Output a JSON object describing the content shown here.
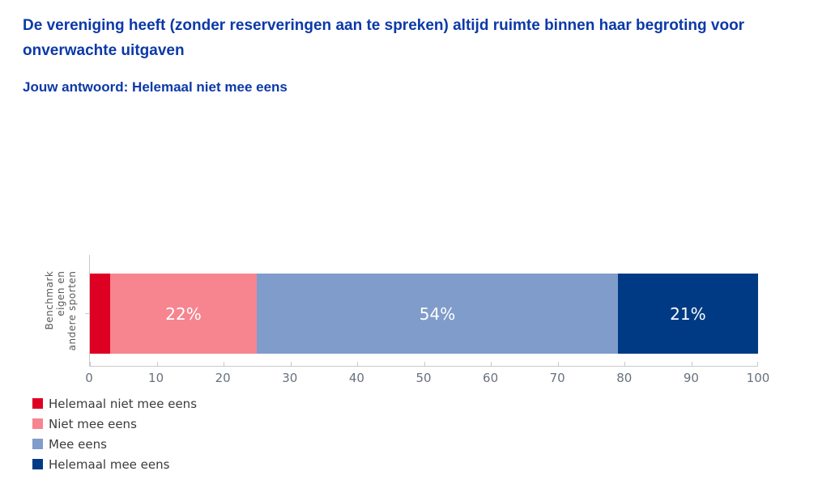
{
  "page": {
    "title": "De vereniging heeft (zonder reserveringen aan te spreken) altijd ruimte binnen haar begroting voor onverwachte uitgaven",
    "subtitle": "Jouw antwoord: Helemaal niet mee eens"
  },
  "chart_data": {
    "type": "bar",
    "orientation": "horizontal",
    "stacked": true,
    "title": "De vereniging heeft (zonder reserveringen aan te spreken) altijd ruimte binnen haar begroting voor onverwachte uitgaven",
    "subtitle": "Jouw antwoord: Helemaal niet mee eens",
    "category": "Benchmark eigen en andere sporten",
    "category_lines": [
      "Benchmark",
      "eigen en",
      "andere sporten"
    ],
    "series": [
      {
        "name": "Helemaal niet mee eens",
        "value": 3,
        "label": "",
        "color": "#de0023"
      },
      {
        "name": "Niet mee eens",
        "value": 22,
        "label": "22%",
        "color": "#f6858f"
      },
      {
        "name": "Mee eens",
        "value": 54,
        "label": "54%",
        "color": "#7f9cca"
      },
      {
        "name": "Helemaal mee eens",
        "value": 21,
        "label": "21%",
        "color": "#003a84"
      }
    ],
    "xlim": [
      0,
      100
    ],
    "x_ticks": [
      0,
      10,
      20,
      30,
      40,
      50,
      60,
      70,
      80,
      90,
      100
    ],
    "legend_position": "bottom-left",
    "bar_label_color": "#ffffff",
    "axis_color": "#c9c9c9",
    "tick_label_color": "#68717e",
    "accent_title_color": "#0c39a8"
  }
}
